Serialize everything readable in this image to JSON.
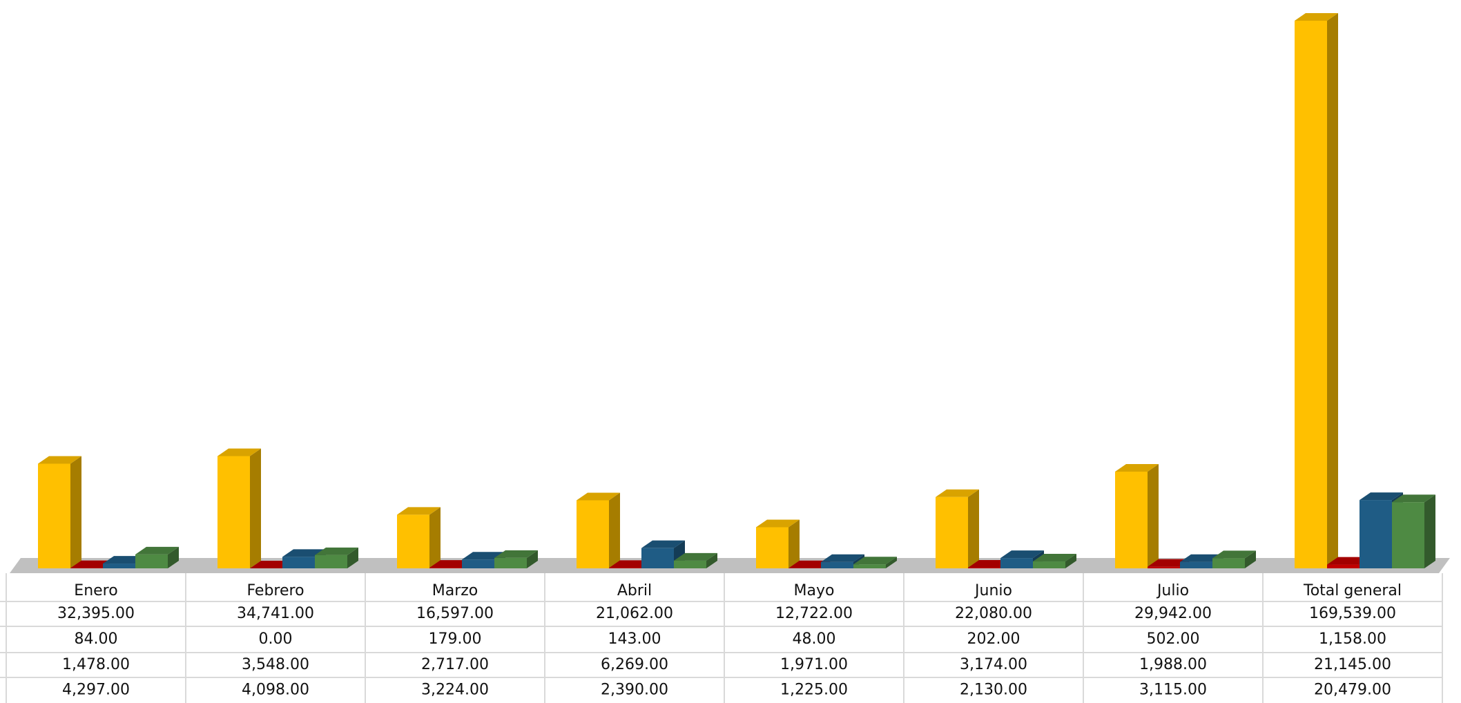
{
  "chart_data": {
    "type": "bar3d",
    "categories": [
      "Enero",
      "Febrero",
      "Marzo",
      "Abril",
      "Mayo",
      "Junio",
      "Julio",
      "Total general"
    ],
    "series": [
      {
        "color": "#FFC000",
        "values": [
          32395,
          34741,
          16597,
          21062,
          12722,
          22080,
          29942,
          169539
        ],
        "value_labels": [
          "32,395.00",
          "34,741.00",
          "16,597.00",
          "21,062.00",
          "12,722.00",
          "22,080.00",
          "29,942.00",
          "169,539.00"
        ]
      },
      {
        "color": "#C00000",
        "values": [
          84,
          0,
          179,
          143,
          48,
          202,
          502,
          1158
        ],
        "value_labels": [
          "84.00",
          "0.00",
          "179.00",
          "143.00",
          "48.00",
          "202.00",
          "502.00",
          "1,158.00"
        ]
      },
      {
        "color": "#1F5C85",
        "values": [
          1478,
          3548,
          2717,
          6269,
          1971,
          3174,
          1988,
          21145
        ],
        "value_labels": [
          "1,478.00",
          "3,548.00",
          "2,717.00",
          "6,269.00",
          "1,971.00",
          "3,174.00",
          "1,988.00",
          "21,145.00"
        ]
      },
      {
        "color": "#4E8A43",
        "values": [
          4297,
          4098,
          3224,
          2390,
          1225,
          2130,
          3115,
          20479
        ],
        "value_labels": [
          "4,297.00",
          "4,098.00",
          "3,224.00",
          "2,390.00",
          "1,225.00",
          "2,130.00",
          "3,115.00",
          "20,479.00"
        ]
      }
    ]
  }
}
